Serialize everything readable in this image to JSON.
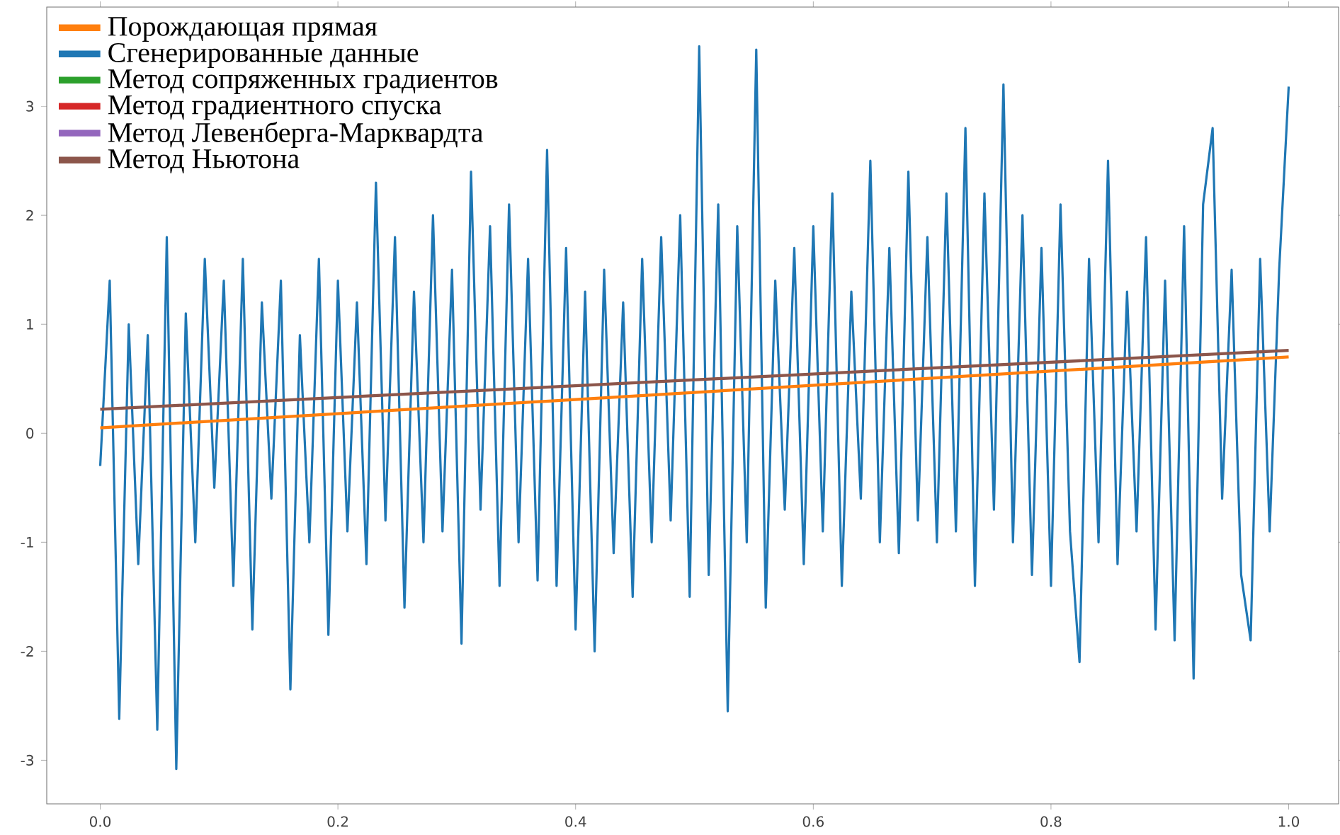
{
  "chart_data": {
    "type": "line",
    "xlim": [
      -0.045,
      1.042
    ],
    "ylim": [
      -3.4,
      3.91
    ],
    "xticks": [
      {
        "value": 0,
        "label": "0.0"
      },
      {
        "value": 0.2,
        "label": "0.2"
      },
      {
        "value": 0.4,
        "label": "0.4"
      },
      {
        "value": 0.6,
        "label": "0.6"
      },
      {
        "value": 0.8,
        "label": "0.8"
      },
      {
        "value": 1,
        "label": "1.0"
      }
    ],
    "yticks": [
      -3,
      -2,
      -1,
      0,
      1,
      2,
      3
    ],
    "legend": "top left",
    "grid": false,
    "marker": "none",
    "line_style": "solid",
    "series": [
      {
        "name": "Порождающая прямая",
        "color": "#ff7f0e",
        "x": [
          0,
          1
        ],
        "values": [
          0.05,
          0.7
        ]
      },
      {
        "name": "Сгенерированные данные",
        "color": "#1f77b4",
        "x": [
          0,
          0.008,
          0.016,
          0.024,
          0.032,
          0.04,
          0.048,
          0.056,
          0.064,
          0.072,
          0.08,
          0.088,
          0.096,
          0.104,
          0.112,
          0.12,
          0.128,
          0.136,
          0.144,
          0.152,
          0.16,
          0.168,
          0.176,
          0.184,
          0.192,
          0.2,
          0.208,
          0.216,
          0.224,
          0.232,
          0.24,
          0.248,
          0.256,
          0.264,
          0.272,
          0.28,
          0.288,
          0.296,
          0.304,
          0.312,
          0.32,
          0.328,
          0.336,
          0.344,
          0.352,
          0.36,
          0.368,
          0.376,
          0.384,
          0.392,
          0.4,
          0.408,
          0.416,
          0.424,
          0.432,
          0.44,
          0.448,
          0.456,
          0.464,
          0.472,
          0.48,
          0.488,
          0.496,
          0.504,
          0.512,
          0.52,
          0.528,
          0.536,
          0.544,
          0.552,
          0.56,
          0.568,
          0.576,
          0.584,
          0.592,
          0.6,
          0.608,
          0.616,
          0.624,
          0.632,
          0.64,
          0.648,
          0.656,
          0.664,
          0.672,
          0.68,
          0.688,
          0.696,
          0.704,
          0.712,
          0.72,
          0.728,
          0.736,
          0.744,
          0.752,
          0.76,
          0.768,
          0.776,
          0.784,
          0.792,
          0.8,
          0.808,
          0.816,
          0.824,
          0.832,
          0.84,
          0.848,
          0.856,
          0.864,
          0.872,
          0.88,
          0.888,
          0.896,
          0.904,
          0.912,
          0.92,
          0.928,
          0.936,
          0.944,
          0.952,
          0.96,
          0.968,
          0.976,
          0.984,
          0.992,
          1.0
        ],
        "values": [
          -0.3,
          1.4,
          -2.62,
          1.0,
          -1.2,
          0.9,
          -2.72,
          1.8,
          -3.08,
          1.1,
          -1.0,
          1.6,
          -0.5,
          1.4,
          -1.4,
          1.6,
          -1.8,
          1.2,
          -0.6,
          1.4,
          -2.35,
          0.9,
          -1.0,
          1.6,
          -1.85,
          1.4,
          -0.9,
          1.2,
          -1.2,
          2.3,
          -0.8,
          1.8,
          -1.6,
          1.3,
          -1.0,
          2.0,
          -0.9,
          1.5,
          -1.93,
          2.4,
          -0.7,
          1.9,
          -1.4,
          2.1,
          -1.0,
          1.6,
          -1.35,
          2.6,
          -1.4,
          1.7,
          -1.8,
          1.3,
          -2.0,
          1.5,
          -1.1,
          1.2,
          -1.5,
          1.6,
          -1.0,
          1.8,
          -0.8,
          2.0,
          -1.5,
          3.55,
          -1.3,
          2.1,
          -2.55,
          1.9,
          -1.0,
          3.52,
          -1.6,
          1.4,
          -0.7,
          1.7,
          -1.2,
          1.9,
          -0.9,
          2.2,
          -1.4,
          1.3,
          -0.6,
          2.5,
          -1.0,
          1.7,
          -1.1,
          2.4,
          -0.8,
          1.8,
          -1.0,
          2.2,
          -0.9,
          2.8,
          -1.4,
          2.2,
          -0.7,
          3.2,
          -1.0,
          2.0,
          -1.3,
          1.7,
          -1.4,
          2.1,
          -0.9,
          -2.1,
          1.6,
          -1.0,
          2.5,
          -1.2,
          1.3,
          -0.9,
          1.8,
          -1.8,
          1.4,
          -1.9,
          1.9,
          -2.25,
          2.1,
          2.8,
          -0.6,
          1.5,
          -1.3,
          -1.9,
          1.6,
          -0.9,
          1.5,
          3.18
        ]
      },
      {
        "name": "Метод сопряженных градиентов",
        "color": "#2ca02c"
      },
      {
        "name": "Метод градиентного спуска",
        "color": "#d62728"
      },
      {
        "name": "Метод Левенберга-Марквардта",
        "color": "#9467bd"
      },
      {
        "name": "Метод Ньютона",
        "color": "#8c564b",
        "x": [
          0,
          1
        ],
        "values": [
          0.22,
          0.76
        ]
      }
    ]
  }
}
